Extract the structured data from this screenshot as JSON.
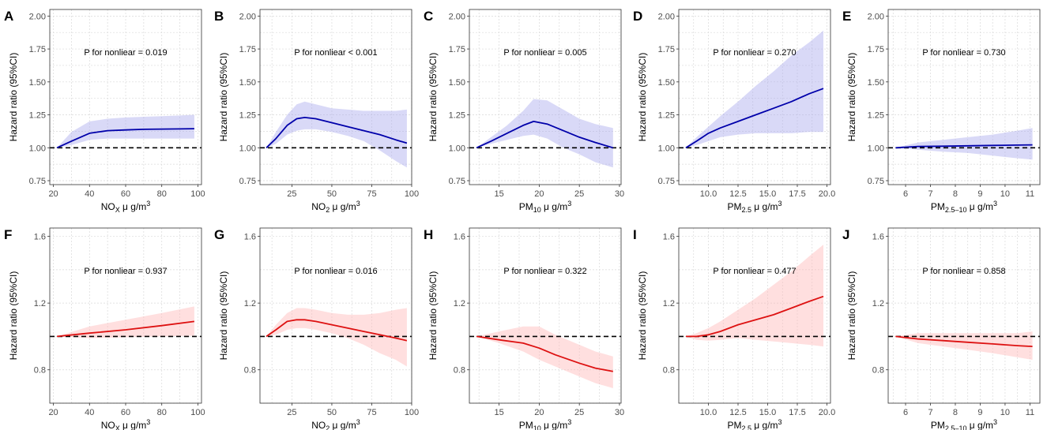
{
  "figure": {
    "ylabel": "Hazard ratio (95%CI)",
    "annotation_prefix": "P for nonliear "
  },
  "chart_data": [
    {
      "panel": "A",
      "type": "line",
      "series_color": "#0000aa",
      "band_color": "#aaaaee",
      "title": "",
      "xlabel": "NO",
      "xlabel_sub": "X",
      "xlabel_unit": " μ g/m",
      "xlabel_sup": "3",
      "ylabel": "Hazard ratio (95%CI)",
      "annotation": "P for nonliear = 0.019",
      "xlim": [
        18,
        102
      ],
      "ylim": [
        0.72,
        2.05
      ],
      "xticks": [
        20,
        40,
        60,
        80,
        100
      ],
      "xtick_labels": [
        "20",
        "40",
        "60",
        "80",
        "100"
      ],
      "yticks": [
        0.75,
        1.0,
        1.25,
        1.5,
        1.75,
        2.0
      ],
      "ytick_labels": [
        "0.75",
        "1.00",
        "1.25",
        "1.50",
        "1.75",
        "2.00"
      ],
      "reference": 1.0,
      "x": [
        22,
        30,
        40,
        50,
        60,
        70,
        80,
        90,
        98
      ],
      "y": [
        1.0,
        1.05,
        1.11,
        1.13,
        1.135,
        1.14,
        1.142,
        1.143,
        1.145
      ],
      "lower": [
        1.0,
        1.02,
        1.06,
        1.07,
        1.07,
        1.07,
        1.07,
        1.07,
        1.07
      ],
      "upper": [
        1.0,
        1.12,
        1.2,
        1.22,
        1.23,
        1.235,
        1.24,
        1.245,
        1.25
      ]
    },
    {
      "panel": "B",
      "type": "line",
      "series_color": "#0000aa",
      "band_color": "#aaaaee",
      "title": "",
      "xlabel": "NO",
      "xlabel_sub": "2",
      "xlabel_unit": " μ g/m",
      "xlabel_sup": "3",
      "ylabel": "Hazard ratio (95%CI)",
      "annotation": "P for nonliear < 0.001",
      "xlim": [
        5,
        100
      ],
      "ylim": [
        0.72,
        2.05
      ],
      "xticks": [
        25,
        50,
        75,
        100
      ],
      "xtick_labels": [
        "25",
        "50",
        "75",
        "100"
      ],
      "yticks": [
        0.75,
        1.0,
        1.25,
        1.5,
        1.75,
        2.0
      ],
      "ytick_labels": [
        "0.75",
        "1.00",
        "1.25",
        "1.50",
        "1.75",
        "2.00"
      ],
      "reference": 1.0,
      "x": [
        9,
        15,
        22,
        28,
        33,
        40,
        50,
        60,
        70,
        80,
        90,
        97
      ],
      "y": [
        1.0,
        1.07,
        1.17,
        1.22,
        1.23,
        1.22,
        1.19,
        1.16,
        1.13,
        1.1,
        1.06,
        1.035
      ],
      "lower": [
        1.0,
        1.03,
        1.1,
        1.13,
        1.14,
        1.14,
        1.12,
        1.09,
        1.05,
        0.98,
        0.9,
        0.85
      ],
      "upper": [
        1.0,
        1.12,
        1.25,
        1.33,
        1.35,
        1.33,
        1.3,
        1.29,
        1.28,
        1.28,
        1.28,
        1.29
      ]
    },
    {
      "panel": "C",
      "type": "line",
      "series_color": "#0000aa",
      "band_color": "#aaaaee",
      "title": "",
      "xlabel": "PM",
      "xlabel_sub": "10",
      "xlabel_unit": " μ g/m",
      "xlabel_sup": "3",
      "ylabel": "Hazard ratio (95%CI)",
      "annotation": "P for nonliear = 0.005",
      "xlim": [
        11.3,
        30.2
      ],
      "ylim": [
        0.72,
        2.05
      ],
      "xticks": [
        15,
        20,
        25,
        30
      ],
      "xtick_labels": [
        "15",
        "20",
        "25",
        "30"
      ],
      "yticks": [
        0.75,
        1.0,
        1.25,
        1.5,
        1.75,
        2.0
      ],
      "ytick_labels": [
        "0.75",
        "1.00",
        "1.25",
        "1.50",
        "1.75",
        "2.00"
      ],
      "reference": 1.0,
      "x": [
        12.2,
        14,
        16,
        18,
        19.3,
        21,
        23,
        25,
        27,
        29.2
      ],
      "y": [
        1.0,
        1.05,
        1.11,
        1.17,
        1.2,
        1.18,
        1.13,
        1.08,
        1.04,
        1.0
      ],
      "lower": [
        1.0,
        1.03,
        1.06,
        1.09,
        1.1,
        1.07,
        1.0,
        0.95,
        0.89,
        0.85
      ],
      "upper": [
        1.0,
        1.08,
        1.17,
        1.28,
        1.37,
        1.36,
        1.29,
        1.22,
        1.18,
        1.15
      ]
    },
    {
      "panel": "D",
      "type": "line",
      "series_color": "#0000aa",
      "band_color": "#aaaaee",
      "title": "",
      "xlabel": "PM",
      "xlabel_sub": "2.5",
      "xlabel_unit": " μ g/m",
      "xlabel_sup": "3",
      "ylabel": "Hazard ratio (95%CI)",
      "annotation": "P for nonliear = 0.270",
      "xlim": [
        7.5,
        20.3
      ],
      "ylim": [
        0.72,
        2.05
      ],
      "xticks": [
        10,
        12.5,
        15,
        17.5,
        20
      ],
      "xtick_labels": [
        "10.0",
        "12.5",
        "15.0",
        "17.5",
        "20.0"
      ],
      "yticks": [
        0.75,
        1.0,
        1.25,
        1.5,
        1.75,
        2.0
      ],
      "ytick_labels": [
        "0.75",
        "1.00",
        "1.25",
        "1.50",
        "1.75",
        "2.00"
      ],
      "reference": 1.0,
      "x": [
        8.1,
        9,
        10,
        11,
        12.5,
        14,
        15.5,
        17,
        18.5,
        19.7
      ],
      "y": [
        1.0,
        1.05,
        1.11,
        1.15,
        1.2,
        1.25,
        1.3,
        1.35,
        1.41,
        1.45
      ],
      "lower": [
        1.0,
        1.02,
        1.05,
        1.08,
        1.1,
        1.11,
        1.11,
        1.11,
        1.12,
        1.12
      ],
      "upper": [
        1.0,
        1.08,
        1.16,
        1.24,
        1.35,
        1.47,
        1.58,
        1.7,
        1.8,
        1.89
      ]
    },
    {
      "panel": "E",
      "type": "line",
      "series_color": "#0000aa",
      "band_color": "#aaaaee",
      "title": "",
      "xlabel": "PM",
      "xlabel_sub": "2.5–10",
      "xlabel_unit": " μ g/m",
      "xlabel_sup": "3",
      "ylabel": "Hazard ratio (95%CI)",
      "annotation": "P for nonliear = 0.730",
      "xlim": [
        5.3,
        11.4
      ],
      "ylim": [
        0.72,
        2.05
      ],
      "xticks": [
        6,
        7,
        8,
        9,
        10,
        11
      ],
      "xtick_labels": [
        "6",
        "7",
        "8",
        "9",
        "10",
        "11"
      ],
      "yticks": [
        0.75,
        1.0,
        1.25,
        1.5,
        1.75,
        2.0
      ],
      "ytick_labels": [
        "0.75",
        "1.00",
        "1.25",
        "1.50",
        "1.75",
        "2.00"
      ],
      "reference": 1.0,
      "x": [
        5.6,
        6.5,
        7.5,
        8.5,
        9.5,
        10.5,
        11.1
      ],
      "y": [
        1.0,
        1.01,
        1.012,
        1.015,
        1.018,
        1.02,
        1.022
      ],
      "lower": [
        1.0,
        0.985,
        0.97,
        0.96,
        0.94,
        0.92,
        0.91
      ],
      "upper": [
        1.0,
        1.04,
        1.06,
        1.08,
        1.1,
        1.13,
        1.15
      ]
    },
    {
      "panel": "F",
      "type": "line",
      "series_color": "#dd1111",
      "band_color": "#ffb8b8",
      "title": "",
      "xlabel": "NO",
      "xlabel_sub": "X",
      "xlabel_unit": " μ g/m",
      "xlabel_sup": "3",
      "ylabel": "Hazard ratio (95%CI)",
      "annotation": "P for nonliear = 0.937",
      "xlim": [
        18,
        102
      ],
      "ylim": [
        0.6,
        1.65
      ],
      "xticks": [
        20,
        40,
        60,
        80,
        100
      ],
      "xtick_labels": [
        "20",
        "40",
        "60",
        "80",
        "100"
      ],
      "yticks": [
        0.8,
        1.2,
        1.6
      ],
      "ytick_labels": [
        "0.8",
        "1.2",
        "1.6"
      ],
      "reference": 1.0,
      "x": [
        22,
        40,
        60,
        80,
        98
      ],
      "y": [
        1.0,
        1.02,
        1.04,
        1.065,
        1.09
      ],
      "lower": [
        1.0,
        0.99,
        0.995,
        1.0,
        1.005
      ],
      "upper": [
        1.0,
        1.06,
        1.1,
        1.14,
        1.18
      ]
    },
    {
      "panel": "G",
      "type": "line",
      "series_color": "#dd1111",
      "band_color": "#ffb8b8",
      "title": "",
      "xlabel": "NO",
      "xlabel_sub": "2",
      "xlabel_unit": " μ g/m",
      "xlabel_sup": "3",
      "ylabel": "Hazard ratio (95%CI)",
      "annotation": "P for nonliear = 0.016",
      "xlim": [
        5,
        100
      ],
      "ylim": [
        0.6,
        1.65
      ],
      "xticks": [
        25,
        50,
        75,
        100
      ],
      "xtick_labels": [
        "25",
        "50",
        "75",
        "100"
      ],
      "yticks": [
        0.8,
        1.2,
        1.6
      ],
      "ytick_labels": [
        "0.8",
        "1.2",
        "1.6"
      ],
      "reference": 1.0,
      "x": [
        9,
        15,
        22,
        28,
        33,
        40,
        50,
        60,
        70,
        80,
        90,
        97
      ],
      "y": [
        1.0,
        1.04,
        1.09,
        1.1,
        1.1,
        1.09,
        1.07,
        1.05,
        1.03,
        1.01,
        0.99,
        0.975
      ],
      "lower": [
        1.0,
        1.01,
        1.04,
        1.05,
        1.05,
        1.04,
        1.02,
        0.99,
        0.95,
        0.9,
        0.86,
        0.82
      ],
      "upper": [
        1.0,
        1.07,
        1.14,
        1.17,
        1.17,
        1.16,
        1.14,
        1.13,
        1.13,
        1.14,
        1.16,
        1.17
      ]
    },
    {
      "panel": "H",
      "type": "line",
      "series_color": "#dd1111",
      "band_color": "#ffb8b8",
      "title": "",
      "xlabel": "PM",
      "xlabel_sub": "10",
      "xlabel_unit": " μ g/m",
      "xlabel_sup": "3",
      "ylabel": "Hazard ratio (95%CI)",
      "annotation": "P for nonliear = 0.322",
      "xlim": [
        11.3,
        30.2
      ],
      "ylim": [
        0.6,
        1.65
      ],
      "xticks": [
        15,
        20,
        25,
        30
      ],
      "xtick_labels": [
        "15",
        "20",
        "25",
        "30"
      ],
      "yticks": [
        0.8,
        1.2,
        1.6
      ],
      "ytick_labels": [
        "0.8",
        "1.2",
        "1.6"
      ],
      "reference": 1.0,
      "x": [
        12.2,
        15,
        18,
        20,
        22,
        25,
        27,
        29.2
      ],
      "y": [
        1.0,
        0.98,
        0.96,
        0.93,
        0.89,
        0.84,
        0.81,
        0.79
      ],
      "lower": [
        1.0,
        0.96,
        0.91,
        0.86,
        0.82,
        0.76,
        0.72,
        0.69
      ],
      "upper": [
        1.0,
        1.03,
        1.06,
        1.06,
        1.01,
        0.95,
        0.91,
        0.88
      ]
    },
    {
      "panel": "I",
      "type": "line",
      "series_color": "#dd1111",
      "band_color": "#ffb8b8",
      "title": "",
      "xlabel": "PM",
      "xlabel_sub": "2.5",
      "xlabel_unit": " μ g/m",
      "xlabel_sup": "3",
      "ylabel": "Hazard ratio (95%CI)",
      "annotation": "P for nonliear = 0.477",
      "xlim": [
        7.5,
        20.3
      ],
      "ylim": [
        0.6,
        1.65
      ],
      "xticks": [
        10,
        12.5,
        15,
        17.5,
        20
      ],
      "xtick_labels": [
        "10.0",
        "12.5",
        "15.0",
        "17.5",
        "20.0"
      ],
      "yticks": [
        0.8,
        1.2,
        1.6
      ],
      "ytick_labels": [
        "0.8",
        "1.2",
        "1.6"
      ],
      "reference": 1.0,
      "x": [
        8.1,
        9,
        10,
        11,
        12.5,
        14,
        15.5,
        17,
        18.5,
        19.7
      ],
      "y": [
        1.0,
        1.0,
        1.01,
        1.03,
        1.07,
        1.1,
        1.13,
        1.17,
        1.21,
        1.24
      ],
      "lower": [
        1.0,
        0.98,
        0.975,
        0.98,
        0.99,
        0.98,
        0.97,
        0.96,
        0.95,
        0.94
      ],
      "upper": [
        1.0,
        1.02,
        1.05,
        1.09,
        1.16,
        1.23,
        1.31,
        1.39,
        1.48,
        1.55
      ]
    },
    {
      "panel": "J",
      "type": "line",
      "series_color": "#dd1111",
      "band_color": "#ffb8b8",
      "title": "",
      "xlabel": "PM",
      "xlabel_sub": "2.5–10",
      "xlabel_unit": " μ g/m",
      "xlabel_sup": "3",
      "ylabel": "Hazard ratio (95%CI)",
      "annotation": "P for nonliear = 0.858",
      "xlim": [
        5.3,
        11.4
      ],
      "ylim": [
        0.6,
        1.65
      ],
      "xticks": [
        6,
        7,
        8,
        9,
        10,
        11
      ],
      "xtick_labels": [
        "6",
        "7",
        "8",
        "9",
        "10",
        "11"
      ],
      "yticks": [
        0.8,
        1.2,
        1.6
      ],
      "ytick_labels": [
        "0.8",
        "1.2",
        "1.6"
      ],
      "reference": 1.0,
      "x": [
        5.6,
        6.5,
        7.5,
        8.5,
        9.5,
        10.5,
        11.1
      ],
      "y": [
        1.0,
        0.985,
        0.975,
        0.965,
        0.955,
        0.945,
        0.94
      ],
      "lower": [
        1.0,
        0.96,
        0.94,
        0.92,
        0.9,
        0.875,
        0.86
      ],
      "upper": [
        1.0,
        1.02,
        1.02,
        1.02,
        1.02,
        1.02,
        1.03
      ]
    }
  ]
}
